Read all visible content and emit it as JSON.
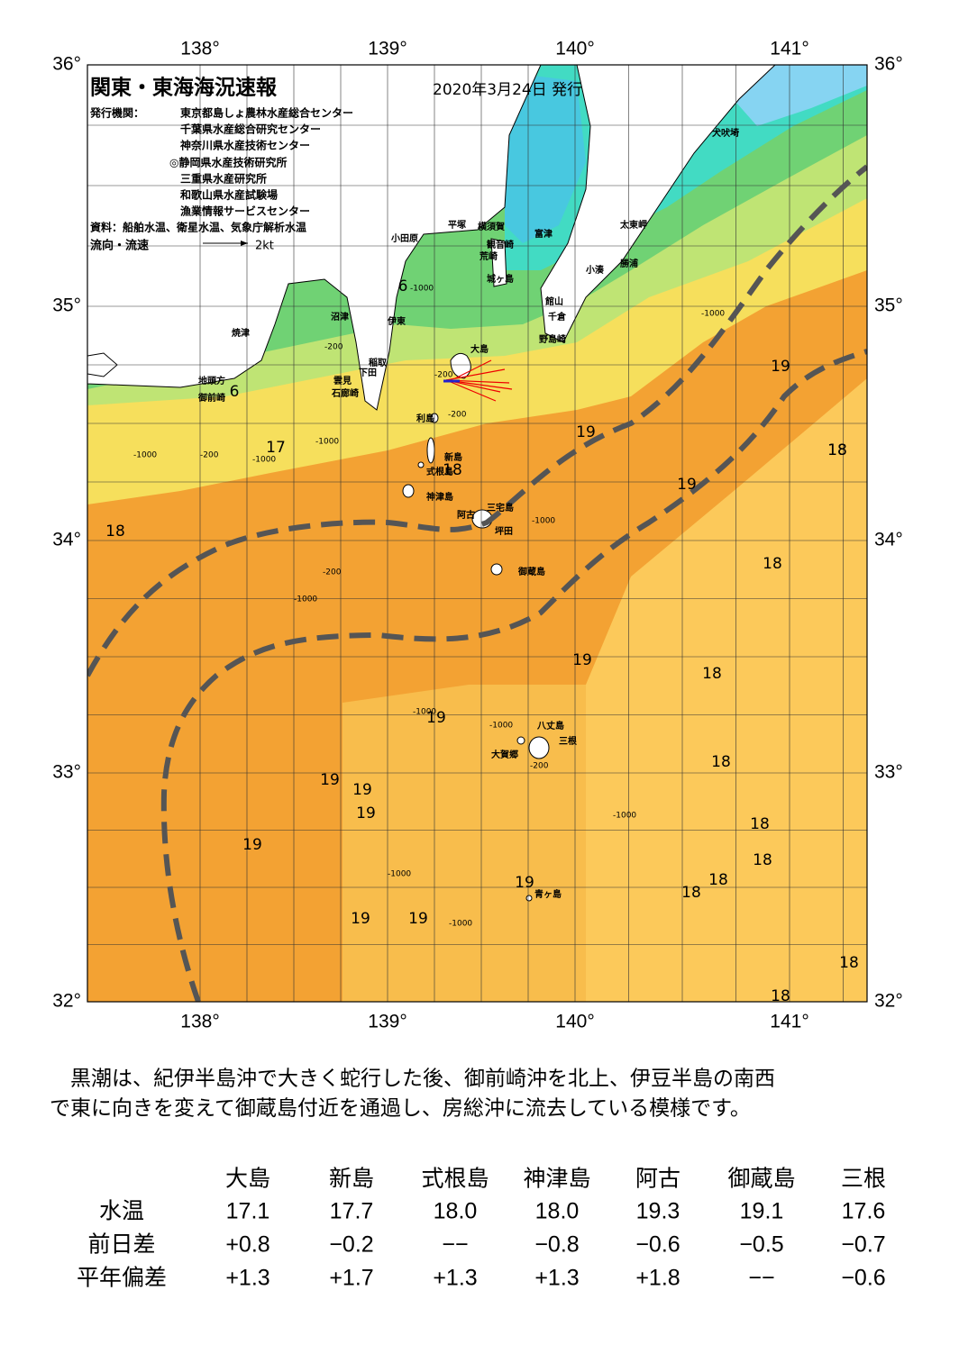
{
  "header": {
    "title": "関東・東海海況速報",
    "date": "2020年3月24日 発行",
    "issuer_label": "発行機関：",
    "issuers": [
      "東京都島しょ農林水産総合センター",
      "千葉県水産総合研究センター",
      "神奈川県水産技術センター",
      "◎静岡県水産技術研究所",
      "三重県水産研究所",
      "和歌山県水産試験場",
      "漁業情報サービスセンター"
    ],
    "sources": "資料：船舶水温、衛星水温、気象庁解析水温",
    "legend_label": "流向・流速",
    "legend_scale": "2kt"
  },
  "map": {
    "lon_labels": [
      "138°",
      "139°",
      "140°",
      "141°"
    ],
    "lat_labels": [
      "36°",
      "35°",
      "34°",
      "33°",
      "32°"
    ],
    "places": [
      "犬吠埼",
      "太東岬",
      "勝浦",
      "小湊",
      "富津",
      "横須賀",
      "平塚",
      "小田原",
      "観音崎",
      "荒崎",
      "城ヶ島",
      "館山",
      "千倉",
      "野島崎",
      "沼津",
      "伊東",
      "焼津",
      "稲取",
      "下田",
      "雲見",
      "石廊崎",
      "地頭方",
      "御前崎",
      "大島",
      "利島",
      "新島",
      "式根島",
      "神津島",
      "三宅島",
      "阿古",
      "坪田",
      "御蔵島",
      "八丈島",
      "三根",
      "大賀郷",
      "青ヶ島"
    ],
    "isotherm_labels": [
      "6",
      "6",
      "17",
      "18",
      "18",
      "19",
      "19",
      "19",
      "19",
      "19",
      "19",
      "19",
      "19",
      "19",
      "19",
      "19",
      "19",
      "18",
      "18",
      "18",
      "18",
      "18",
      "18",
      "18",
      "18",
      "18",
      "18",
      "18"
    ],
    "depth_labels": [
      "-1000",
      "-200",
      "-200",
      "-1000",
      "-200",
      "-1000",
      "-1000",
      "-200",
      "-1000",
      "-1000",
      "-1000",
      "-1000",
      "-1000",
      "-200",
      "-1000",
      "-1000",
      "-1000",
      "-200"
    ]
  },
  "description": [
    "　黒潮は、紀伊半島沖で大きく蛇行した後、御前崎沖を北上、伊豆半島の南西",
    "で東に向きを変えて御蔵島付近を通過し、房総沖に流去している模様です。"
  ],
  "table": {
    "columns": [
      "大島",
      "新島",
      "式根島",
      "神津島",
      "阿古",
      "御蔵島",
      "三根"
    ],
    "rows": [
      {
        "label": "水温",
        "cells": [
          "17.1",
          "17.7",
          "18.0",
          "18.0",
          "19.3",
          "19.1",
          "17.6"
        ]
      },
      {
        "label": "前日差",
        "cells": [
          "+0.8",
          "−0.2",
          "−−",
          "−0.8",
          "−0.6",
          "−0.5",
          "−0.7"
        ]
      },
      {
        "label": "平年偏差",
        "cells": [
          "+1.3",
          "+1.7",
          "+1.3",
          "+1.3",
          "+1.8",
          "−−",
          "−0.6"
        ]
      }
    ]
  }
}
